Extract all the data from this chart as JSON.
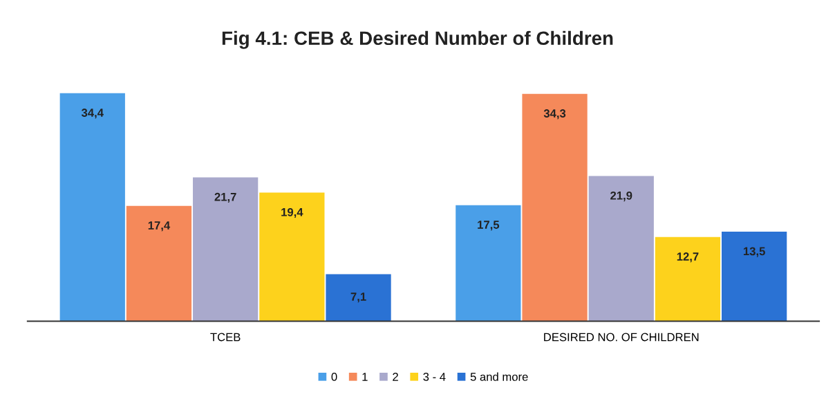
{
  "chart_data": {
    "type": "bar",
    "title": "Fig 4.1: CEB & Desired Number of Children",
    "categories": [
      "TCEB",
      "DESIRED NO. OF CHILDREN"
    ],
    "series": [
      {
        "name": "0",
        "color": "#4a9fe8",
        "values": [
          34.4,
          17.5
        ],
        "value_labels": [
          "34,4",
          "17,5"
        ]
      },
      {
        "name": "1",
        "color": "#f5895a",
        "values": [
          17.4,
          34.3
        ],
        "value_labels": [
          "17,4",
          "34,3"
        ]
      },
      {
        "name": "2",
        "color": "#a9a9cc",
        "values": [
          21.7,
          21.9
        ],
        "value_labels": [
          "21,7",
          "21,9"
        ]
      },
      {
        "name": "3 - 4",
        "color": "#fdd21c",
        "values": [
          19.4,
          12.7
        ],
        "value_labels": [
          "19,4",
          "12,7"
        ]
      },
      {
        "name": "5 and more",
        "color": "#2a72d4",
        "values": [
          7.1,
          13.5
        ],
        "value_labels": [
          "7,1",
          "13,5"
        ]
      }
    ],
    "grid": false,
    "legend": "bottom"
  }
}
